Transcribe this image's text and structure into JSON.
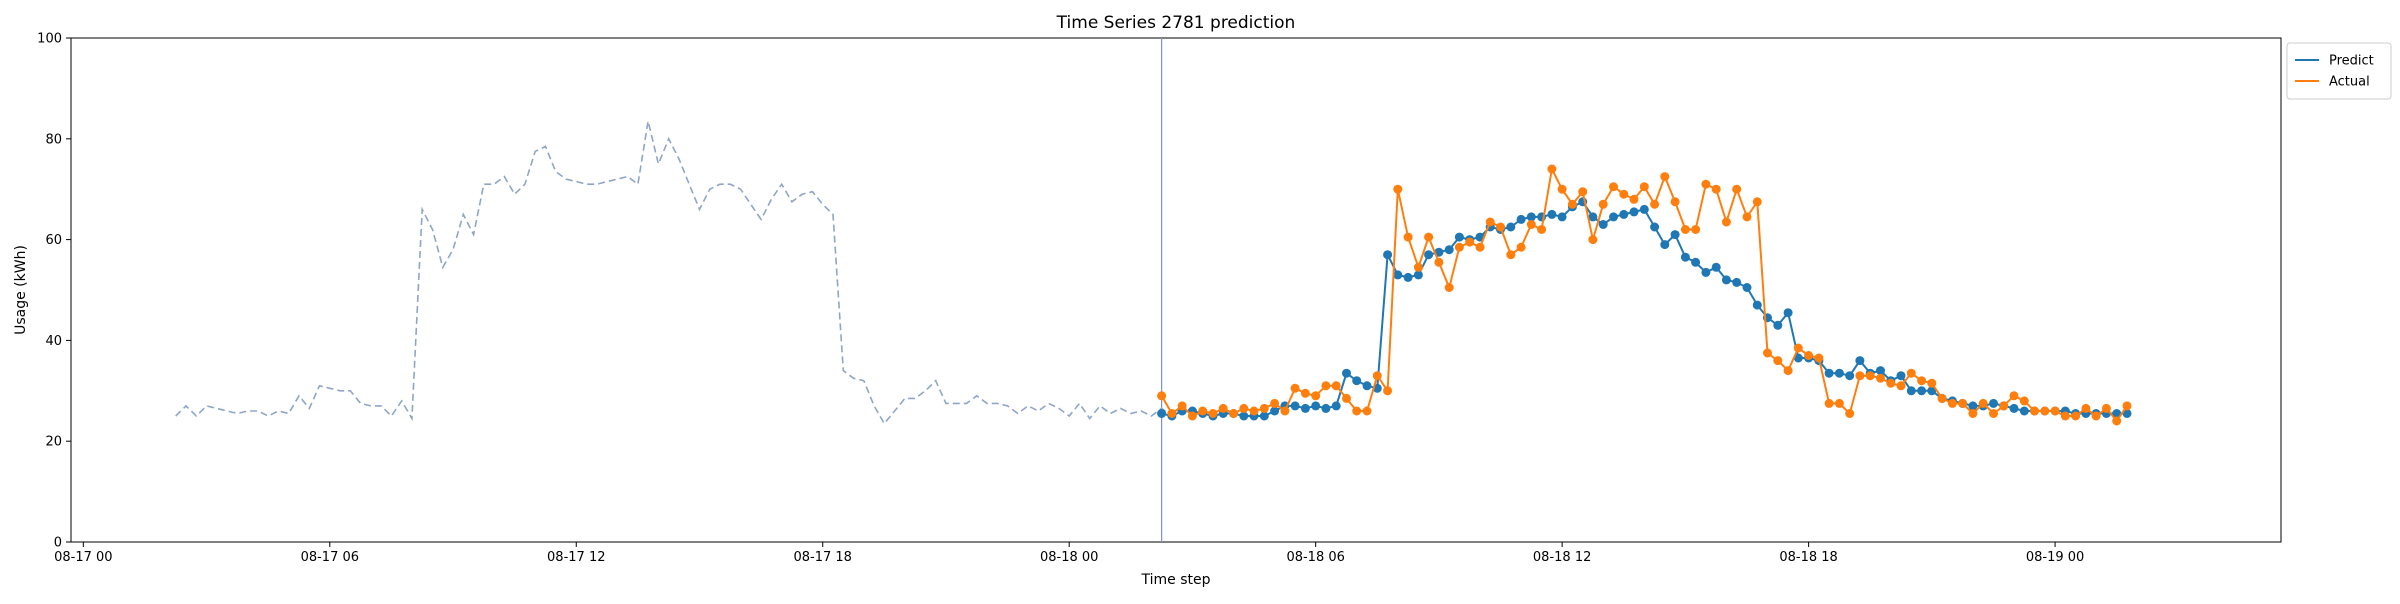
{
  "chart_data": {
    "type": "line",
    "title": "Time Series 2781 prediction",
    "xlabel": "Time step",
    "ylabel": "Usage (kWh)",
    "ylim": [
      0,
      100
    ],
    "yticks": [
      "0",
      "20",
      "40",
      "60",
      "80",
      "100"
    ],
    "xlim_hours": [
      -0.3,
      53.5
    ],
    "xticks": [
      {
        "hour": 0,
        "label": "08-17 00"
      },
      {
        "hour": 6,
        "label": "08-17 06"
      },
      {
        "hour": 12,
        "label": "08-17 12"
      },
      {
        "hour": 18,
        "label": "08-17 18"
      },
      {
        "hour": 24,
        "label": "08-18 00"
      },
      {
        "hour": 30,
        "label": "08-18 06"
      },
      {
        "hour": 36,
        "label": "08-18 12"
      },
      {
        "hour": 42,
        "label": "08-18 18"
      },
      {
        "hour": 48,
        "label": "08-19 00"
      }
    ],
    "grid": false,
    "legend_position": "outside top-right",
    "forecast_start_hour": 26.25,
    "history": {
      "color": "#8fa5c8",
      "start_hour": 2.25,
      "step_hours": 0.25,
      "values": [
        25,
        27,
        25,
        27,
        26.5,
        26,
        25.5,
        26,
        26,
        25,
        26,
        25.5,
        29,
        26.5,
        31,
        30.5,
        30,
        30,
        27.5,
        27,
        27,
        25,
        28,
        24.5,
        66,
        62,
        54.5,
        58,
        65,
        61,
        71,
        71,
        72.5,
        69,
        71,
        77.5,
        78.5,
        73.5,
        72,
        71.5,
        71,
        71,
        71.5,
        72,
        72.5,
        71,
        83.5,
        75,
        80,
        76,
        71,
        66,
        70,
        71,
        71,
        70,
        67,
        64,
        68,
        71,
        67.5,
        69,
        69.5,
        67,
        65,
        34,
        32.5,
        32,
        27,
        23.5,
        26,
        28.5,
        28.5,
        30,
        32,
        27.5,
        27.5,
        27.5,
        29,
        27.5,
        27.5,
        27,
        25.5,
        27,
        26,
        27.5,
        26.5,
        25,
        27.5,
        24.5,
        27,
        25.5,
        26.5,
        25.5,
        26,
        25,
        26.5,
        25,
        27
      ]
    },
    "series": [
      {
        "name": "Predict",
        "color": "#1f77b4",
        "start_hour": 26.25,
        "step_hours": 0.25,
        "values": [
          25.5,
          25,
          26,
          26,
          25.5,
          25,
          25.5,
          25.5,
          25,
          25,
          25,
          26,
          27,
          27,
          26.5,
          27,
          26.5,
          27,
          33.5,
          32,
          31,
          30.5,
          57,
          53,
          52.5,
          53,
          57,
          57.5,
          58,
          60.5,
          60,
          60.5,
          62.5,
          62,
          62.5,
          64,
          64.5,
          64.5,
          65,
          64.5,
          66.5,
          67.5,
          64.5,
          63,
          64.5,
          65,
          65.5,
          66,
          62.5,
          59,
          61,
          56.5,
          55.5,
          53.5,
          54.5,
          52,
          51.5,
          50.5,
          47,
          44.5,
          43,
          45.5,
          36.5,
          36.5,
          36,
          33.5,
          33.5,
          33,
          36,
          33.5,
          34,
          32,
          33,
          30,
          30,
          30,
          28.5,
          28,
          27.5,
          27,
          27,
          27.5,
          27,
          26.5,
          26,
          26,
          26,
          26,
          26,
          25.5,
          25.5,
          25.5,
          25.5,
          25.5,
          25.5
        ]
      },
      {
        "name": "Actual",
        "color": "#ff7f0e",
        "start_hour": 26.25,
        "step_hours": 0.25,
        "values": [
          29,
          25.5,
          27,
          25,
          26,
          25.5,
          26.5,
          25.5,
          26.5,
          26,
          26.5,
          27.5,
          26,
          30.5,
          29.5,
          29,
          31,
          31,
          28.5,
          26,
          26,
          33,
          30,
          70,
          60.5,
          54.5,
          60.5,
          55.5,
          50.5,
          58.5,
          59.5,
          58.5,
          63.5,
          62.5,
          57,
          58.5,
          63,
          62,
          74,
          70,
          67,
          69.5,
          60,
          67,
          70.5,
          69,
          68,
          70.5,
          67,
          72.5,
          67.5,
          62,
          62,
          71,
          70,
          63.5,
          70,
          64.5,
          67.5,
          37.5,
          36,
          34,
          38.5,
          37,
          36.5,
          27.5,
          27.5,
          25.5,
          33,
          33,
          32.5,
          31.5,
          31,
          33.5,
          32,
          31.5,
          28.5,
          27.5,
          27.5,
          25.5,
          27.5,
          25.5,
          27,
          29,
          28,
          26,
          26,
          26,
          25,
          25,
          26.5,
          25,
          26.5,
          24,
          27
        ]
      }
    ]
  }
}
